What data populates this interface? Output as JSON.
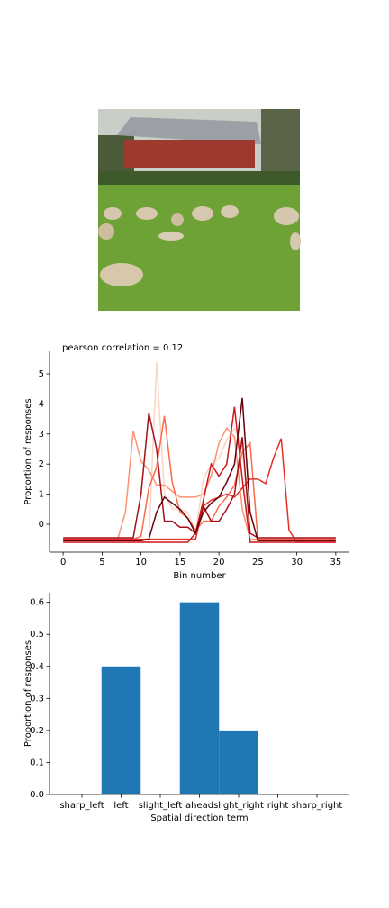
{
  "chart_data": [
    {
      "type": "line",
      "title": "pearson correlation = 0.12",
      "xlabel": "Bin number",
      "ylabel": "Proportion of responses",
      "x": [
        0,
        1,
        2,
        3,
        4,
        5,
        6,
        7,
        8,
        9,
        10,
        11,
        12,
        13,
        14,
        15,
        16,
        17,
        18,
        19,
        20,
        21,
        22,
        23,
        24,
        25,
        26,
        27,
        28,
        29,
        30,
        31,
        32,
        33,
        34,
        35
      ],
      "series": [
        {
          "color": "#fcd5c4",
          "values": [
            -0.6,
            -0.6,
            -0.6,
            -0.6,
            -0.6,
            -0.6,
            -0.6,
            -0.6,
            -0.6,
            -0.6,
            -0.6,
            -0.6,
            5.4,
            1.0,
            0.5,
            0.5,
            0.4,
            -0.3,
            1.5,
            2.0,
            2.2,
            2.8,
            3.2,
            2.6,
            -0.6,
            -0.6,
            -0.6,
            -0.6,
            -0.6,
            -0.6,
            -0.6,
            -0.6,
            -0.6,
            -0.6,
            -0.6,
            -0.6
          ]
        },
        {
          "color": "#fc9272",
          "values": [
            -0.5,
            -0.5,
            -0.5,
            -0.5,
            -0.5,
            -0.5,
            -0.5,
            -0.5,
            0.4,
            3.1,
            2.1,
            1.8,
            1.3,
            1.3,
            1.1,
            0.9,
            0.9,
            0.9,
            1.0,
            1.6,
            2.7,
            3.2,
            2.9,
            0.5,
            -0.5,
            -0.5,
            -0.5,
            -0.5,
            -0.5,
            -0.5,
            -0.5,
            -0.5,
            -0.5,
            -0.5,
            -0.5,
            -0.5
          ]
        },
        {
          "color": "#fb6a4a",
          "values": [
            -0.5,
            -0.5,
            -0.5,
            -0.5,
            -0.5,
            -0.5,
            -0.5,
            -0.5,
            -0.5,
            -0.5,
            -0.4,
            1.2,
            1.9,
            3.6,
            1.4,
            0.4,
            0.2,
            -0.2,
            0.1,
            0.1,
            0.6,
            0.9,
            1.3,
            2.4,
            2.7,
            -0.5,
            -0.5,
            -0.5,
            -0.5,
            -0.5,
            -0.5,
            -0.5,
            -0.5,
            -0.5,
            -0.5,
            -0.5
          ]
        },
        {
          "color": "#e32f27",
          "values": [
            -0.5,
            -0.5,
            -0.5,
            -0.5,
            -0.5,
            -0.5,
            -0.5,
            -0.5,
            -0.5,
            -0.5,
            -0.5,
            -0.5,
            -0.5,
            -0.5,
            -0.5,
            -0.5,
            -0.5,
            -0.5,
            0.6,
            0.8,
            0.9,
            1.0,
            0.9,
            1.2,
            1.5,
            1.5,
            1.35,
            2.2,
            2.85,
            -0.2,
            -0.6,
            -0.6,
            -0.6,
            -0.6,
            -0.6,
            -0.6
          ]
        },
        {
          "color": "#cb181d",
          "values": [
            -0.6,
            -0.6,
            -0.6,
            -0.6,
            -0.6,
            -0.6,
            -0.6,
            -0.6,
            -0.6,
            -0.6,
            -0.6,
            -0.6,
            -0.6,
            -0.6,
            -0.6,
            -0.6,
            -0.6,
            -0.3,
            0.8,
            2.0,
            1.6,
            2.0,
            3.9,
            1.5,
            -0.6,
            -0.6,
            -0.6,
            -0.6,
            -0.6,
            -0.6,
            -0.6,
            -0.6,
            -0.6,
            -0.6,
            -0.6,
            -0.6
          ]
        },
        {
          "color": "#a50f15",
          "values": [
            -0.45,
            -0.45,
            -0.45,
            -0.45,
            -0.45,
            -0.45,
            -0.45,
            -0.45,
            -0.45,
            -0.45,
            1.0,
            3.7,
            2.5,
            0.1,
            0.1,
            -0.1,
            -0.1,
            -0.3,
            0.6,
            0.1,
            0.1,
            0.5,
            1.0,
            2.9,
            -0.3,
            -0.45,
            -0.45,
            -0.45,
            -0.45,
            -0.45,
            -0.45,
            -0.45,
            -0.45,
            -0.45,
            -0.45,
            -0.45
          ]
        },
        {
          "color": "#67000d",
          "values": [
            -0.55,
            -0.55,
            -0.55,
            -0.55,
            -0.55,
            -0.55,
            -0.55,
            -0.55,
            -0.55,
            -0.55,
            -0.55,
            -0.5,
            0.4,
            0.9,
            0.7,
            0.5,
            0.2,
            -0.3,
            0.4,
            0.7,
            0.9,
            1.4,
            2.0,
            4.2,
            0.4,
            -0.55,
            -0.55,
            -0.55,
            -0.55,
            -0.55,
            -0.55,
            -0.55,
            -0.55,
            -0.55,
            -0.55,
            -0.55
          ]
        }
      ],
      "xlim": [
        -1.75,
        36.75
      ],
      "xticks": [
        0,
        5,
        10,
        15,
        20,
        25,
        30,
        35
      ],
      "ylim": [
        -0.93,
        5.75
      ],
      "yticks": [
        0,
        1,
        2,
        3,
        4,
        5
      ]
    },
    {
      "type": "bar",
      "xlabel": "Spatial direction term",
      "ylabel": "Proportion of responses",
      "categories": [
        "sharp_left",
        "left",
        "slight_left",
        "ahead",
        "slight_right",
        "right",
        "sharp_right"
      ],
      "values": [
        0,
        0.4,
        0,
        0.6,
        0.2,
        0,
        0
      ],
      "color": "#1f77b4",
      "ylim": [
        0,
        0.63
      ],
      "yticks": [
        {
          "value": 0,
          "label": "0.0"
        },
        0.1,
        0.2,
        0.3,
        0.4,
        0.5,
        0.6
      ]
    }
  ]
}
